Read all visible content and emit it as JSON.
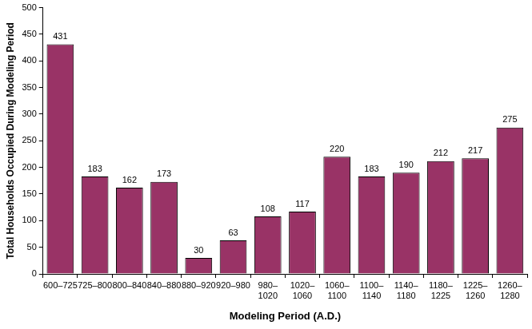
{
  "chart_data": {
    "type": "bar",
    "x_label": "Modeling Period (A.D.)",
    "y_label": "Total Households Occupied During Modeling Period",
    "categories": [
      "600–725",
      "725–800",
      "800–840",
      "840–880",
      "880–920",
      "920–980",
      "980–1020",
      "1020–1060",
      "1060–1100",
      "1100–1140",
      "1140–1180",
      "1180–1225",
      "1225–1260",
      "1260–1280"
    ],
    "values": [
      431,
      183,
      162,
      173,
      30,
      63,
      108,
      117,
      220,
      183,
      190,
      212,
      217,
      275
    ],
    "color": "#993366",
    "ylim": [
      0,
      500
    ],
    "yticks": [
      0,
      50,
      100,
      150,
      200,
      250,
      300,
      350,
      400,
      450,
      500
    ],
    "grid": false,
    "data_labels": true
  }
}
